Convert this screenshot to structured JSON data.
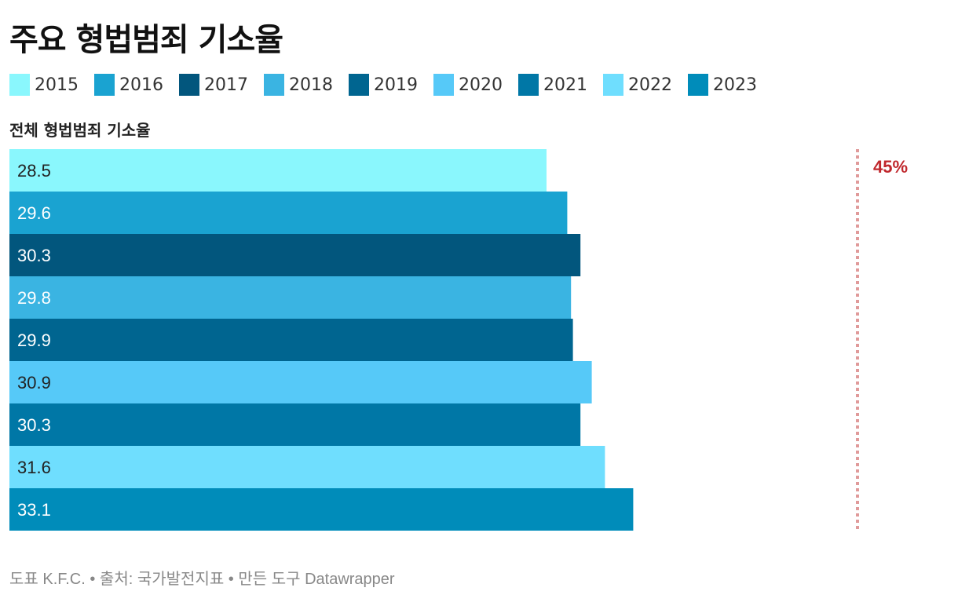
{
  "title": "주요 형법범죄 기소율",
  "chart_data": {
    "type": "bar",
    "orientation": "horizontal",
    "subtitle": "전체 형법범죄 기소율",
    "categories": [
      "2015",
      "2016",
      "2017",
      "2018",
      "2019",
      "2020",
      "2021",
      "2022",
      "2023"
    ],
    "values": [
      28.5,
      29.6,
      30.3,
      29.8,
      29.9,
      30.9,
      30.3,
      31.6,
      33.1
    ],
    "colors": [
      "#8af7fd",
      "#1aa3d1",
      "#02567d",
      "#3ab4e2",
      "#006590",
      "#56c9f8",
      "#0077a6",
      "#6fdefe",
      "#008cba"
    ],
    "value_label_colors": [
      "#222222",
      "#ffffff",
      "#ffffff",
      "#ffffff",
      "#ffffff",
      "#222222",
      "#ffffff",
      "#222222",
      "#ffffff"
    ],
    "reference_line": {
      "value": 45,
      "label": "45%",
      "color": "#c0282d"
    },
    "xlim": [
      0,
      45
    ],
    "grid": false,
    "legend_position": "top"
  },
  "footer": "도표 K.F.C. • 출처: 국가발전지표 • 만든 도구 Datawrapper"
}
